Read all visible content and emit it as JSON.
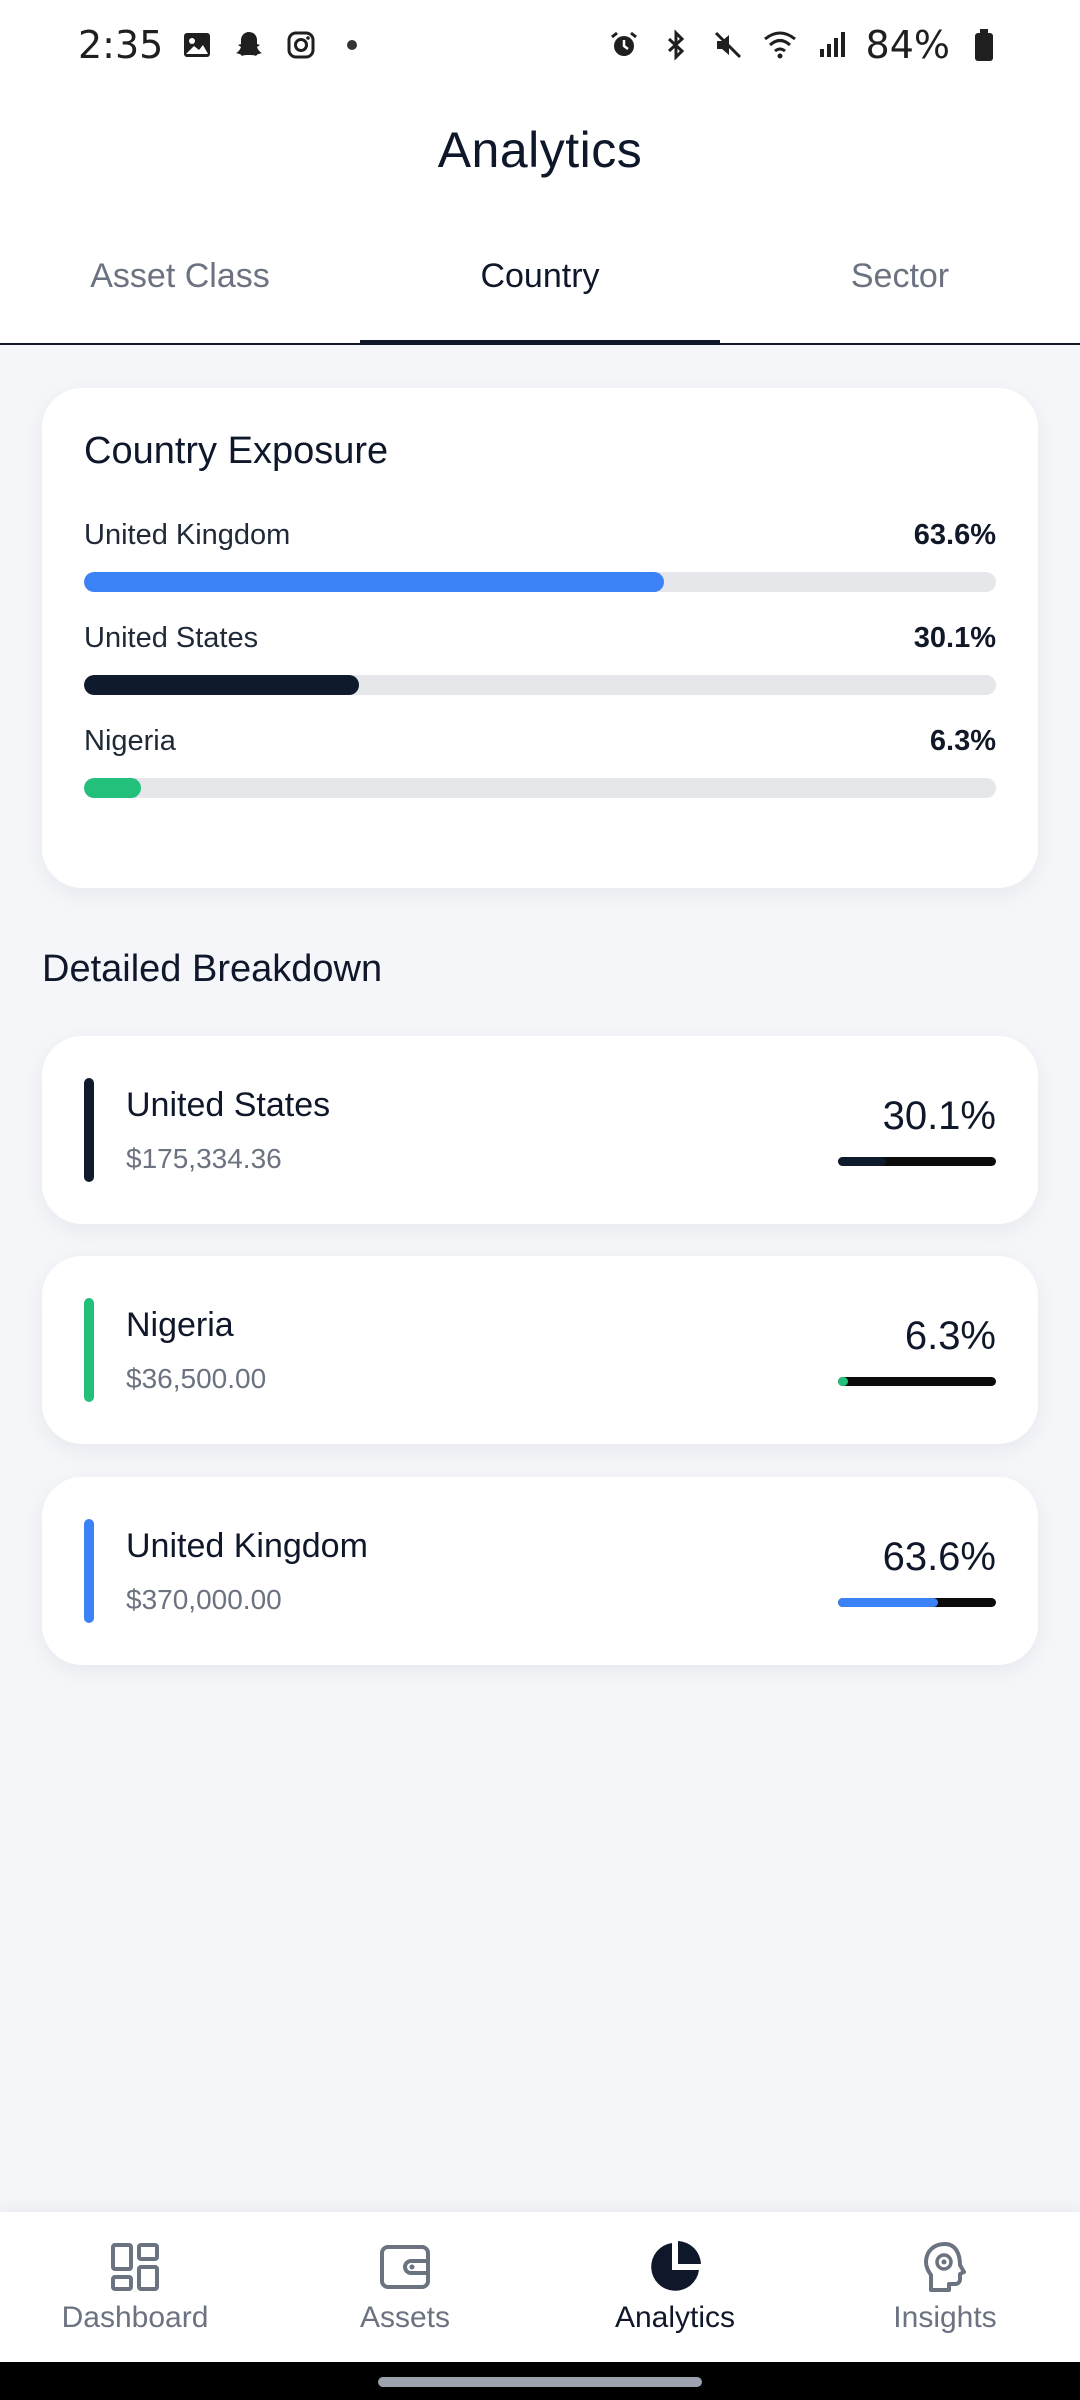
{
  "status_bar": {
    "time": "2:35",
    "battery": "84%",
    "left_icons": [
      "image-icon",
      "snapchat-icon",
      "instagram-icon"
    ],
    "right_icons": [
      "alarm-icon",
      "bluetooth-icon",
      "mute-icon",
      "wifi-icon",
      "signal-icon",
      "battery-icon"
    ]
  },
  "header": {
    "title": "Analytics"
  },
  "tabs": [
    {
      "label": "Asset Class",
      "active": false
    },
    {
      "label": "Country",
      "active": true
    },
    {
      "label": "Sector",
      "active": false
    }
  ],
  "exposure": {
    "title": "Country Exposure",
    "rows": [
      {
        "country": "United Kingdom",
        "percent_label": "63.6%",
        "percent": 63.6,
        "color": "#3b82f6"
      },
      {
        "country": "United States",
        "percent_label": "30.1%",
        "percent": 30.1,
        "color": "#0f1b2d"
      },
      {
        "country": "Nigeria",
        "percent_label": "6.3%",
        "percent": 6.3,
        "color": "#22c07a"
      }
    ]
  },
  "breakdown": {
    "title": "Detailed Breakdown",
    "items": [
      {
        "country": "United States",
        "value": "$175,334.36",
        "percent_label": "30.1%",
        "percent": 30.1,
        "color": "#0f1b2d"
      },
      {
        "country": "Nigeria",
        "value": "$36,500.00",
        "percent_label": "6.3%",
        "percent": 6.3,
        "color": "#22c07a"
      },
      {
        "country": "United Kingdom",
        "value": "$370,000.00",
        "percent_label": "63.6%",
        "percent": 63.6,
        "color": "#3b82f6"
      }
    ]
  },
  "bottom_nav": [
    {
      "label": "Dashboard",
      "icon": "dashboard-icon",
      "active": false
    },
    {
      "label": "Assets",
      "icon": "wallet-icon",
      "active": false
    },
    {
      "label": "Analytics",
      "icon": "pie-chart-icon",
      "active": true
    },
    {
      "label": "Insights",
      "icon": "brain-icon",
      "active": false
    }
  ],
  "colors": {
    "accent": "#0f172a",
    "background": "#f4f6fa",
    "track": "#e5e7eb"
  }
}
